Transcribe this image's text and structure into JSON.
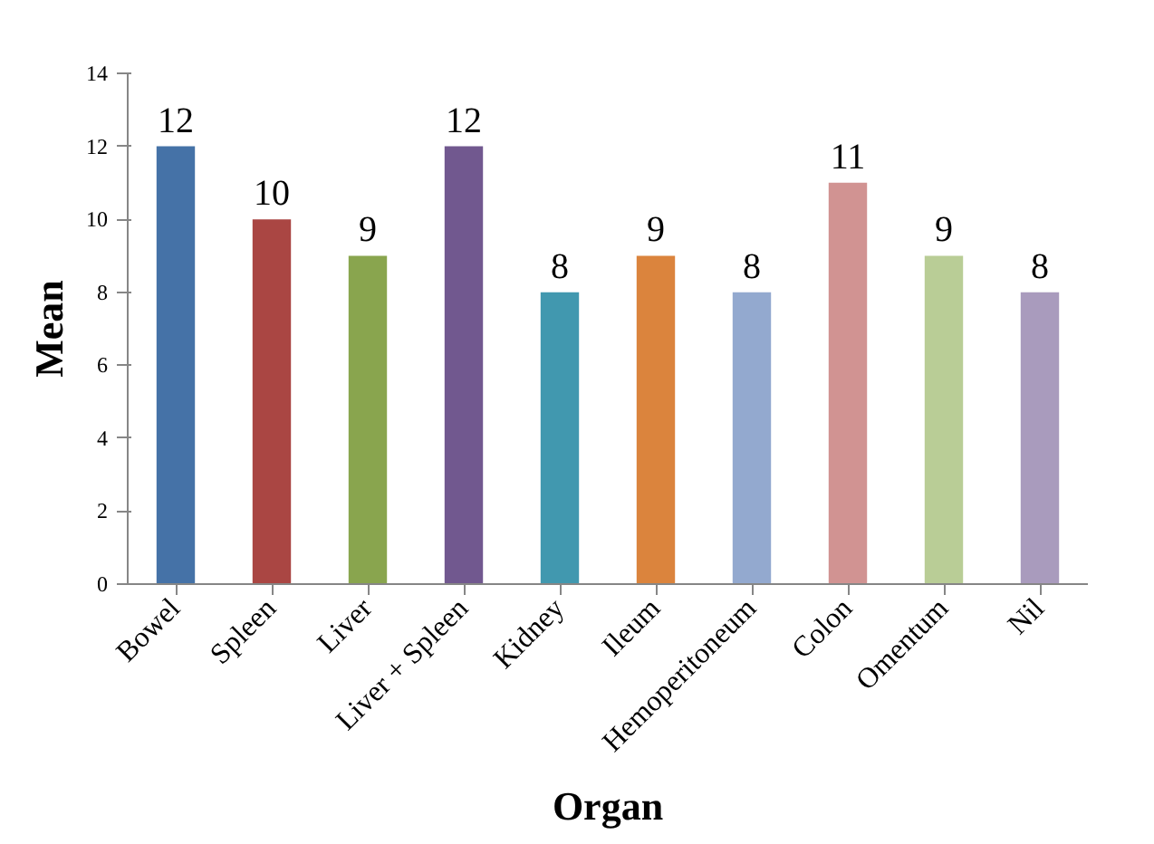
{
  "chart_data": {
    "type": "bar",
    "xlabel": "Organ",
    "ylabel": "Mean",
    "categories": [
      "Bowel",
      "Spleen",
      "Liver",
      "Liver + Spleen",
      "Kidney",
      "Ileum",
      "Hemoperitoneum",
      "Colon",
      "Omentum",
      "Nil"
    ],
    "values": [
      12,
      10,
      9,
      12,
      8,
      9,
      8,
      11,
      9,
      8
    ],
    "colors": [
      "#4572a7",
      "#aa4643",
      "#89a54e",
      "#71588f",
      "#4198af",
      "#db843d",
      "#93a9cf",
      "#d19392",
      "#b9cd96",
      "#a99bbd"
    ],
    "ylim": [
      0,
      14
    ],
    "yticks": [
      0,
      2,
      4,
      6,
      8,
      10,
      12,
      14
    ],
    "data_labels": true,
    "grid": false
  }
}
